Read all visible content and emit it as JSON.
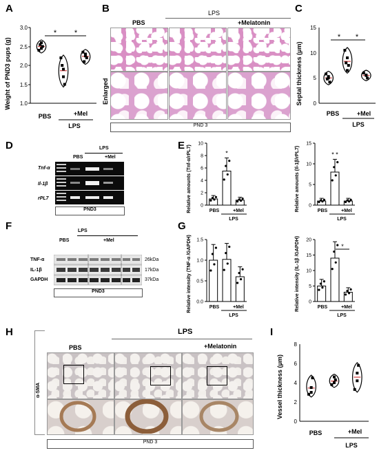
{
  "panels": {
    "A": "A",
    "B": "B",
    "C": "C",
    "D": "D",
    "E": "E",
    "F": "F",
    "G": "G",
    "H": "H",
    "I": "I"
  },
  "panel_A": {
    "ylabel": "Weight of PND3 pups (g)",
    "x_pbs": "PBS",
    "x_mel": "+Mel",
    "group": "LPS",
    "sig1": "*",
    "sig2": "*",
    "ticks": [
      "1.0",
      "1.5",
      "2.0",
      "2.5",
      "3.0"
    ]
  },
  "panel_B": {
    "pbs": "PBS",
    "lps": "LPS",
    "mel": "+Melatonin",
    "enlarged": "Enlarged",
    "footer": "PND 3"
  },
  "panel_C": {
    "ylabel": "Septal thickness (μm)",
    "x_pbs": "PBS",
    "x_mel": "+Mel",
    "group": "LPS",
    "sig1": "*",
    "sig2": "*",
    "ticks": [
      "0",
      "5",
      "10",
      "15"
    ]
  },
  "panel_D": {
    "lps": "LPS",
    "pbs": "PBS",
    "mel": "+Mel",
    "genes": [
      "Tnf-α",
      "Il-1β",
      "rPL7"
    ],
    "footer": "PND3"
  },
  "panel_E1": {
    "ylabel": "Relative amounts (Tnf-α/rPL7)",
    "ticks": [
      "0",
      "2",
      "4",
      "6",
      "8",
      "10"
    ],
    "x_pbs": "PBS",
    "x_mel": "+Mel",
    "group": "LPS",
    "sig": "*"
  },
  "panel_E2": {
    "ylabel": "Relative amounts (Il-1β/rPL7)",
    "ticks": [
      "0",
      "5",
      "10",
      "15"
    ],
    "x_pbs": "PBS",
    "x_mel": "+Mel",
    "group": "LPS",
    "sig": "* *"
  },
  "panel_F": {
    "lps": "LPS",
    "pbs": "PBS",
    "mel": "+Mel",
    "proteins": [
      "TNF-α",
      "IL-1β",
      "GAPDH"
    ],
    "sizes": [
      "26kDa",
      "17kDa",
      "37kDa"
    ],
    "footer": "PND3"
  },
  "panel_G1": {
    "ylabel": "Relative intensity (TNF-α /GAPDH)",
    "ticks": [
      "0.0",
      "0.5",
      "1.0",
      "1.5"
    ],
    "x_pbs": "PBS",
    "x_mel": "+Mel",
    "group": "LPS"
  },
  "panel_G2": {
    "ylabel": "Relative intensity (IL-1β /GAPDH)",
    "ticks": [
      "0",
      "5",
      "10",
      "15",
      "20"
    ],
    "x_pbs": "PBS",
    "x_mel": "+Mel",
    "group": "LPS",
    "sig": "*"
  },
  "panel_H": {
    "pbs": "PBS",
    "lps": "LPS",
    "mel": "+Melatonin",
    "stain": "α-SMA",
    "footer": "PND 3"
  },
  "panel_I": {
    "ylabel": "Vessel thickness (μm)",
    "ticks": [
      "0",
      "2",
      "4",
      "6",
      "8"
    ],
    "x_pbs": "PBS",
    "x_mel": "+Mel",
    "group": "LPS"
  },
  "chart_data": [
    {
      "id": "A",
      "type": "violin",
      "categories": [
        "PBS",
        "LPS",
        "+Mel"
      ],
      "ylim": [
        1.0,
        3.0
      ],
      "series": [
        {
          "values": [
            [
              2.6,
              2.5,
              2.4,
              2.45,
              2.55
            ],
            [
              1.9,
              1.5,
              2.2,
              1.7,
              2.0
            ],
            [
              2.3,
              2.2,
              2.35,
              2.25,
              2.1
            ]
          ]
        }
      ]
    },
    {
      "id": "C",
      "type": "violin",
      "categories": [
        "PBS",
        "LPS",
        "+Mel"
      ],
      "ylim": [
        0,
        15
      ],
      "series": [
        {
          "values": [
            [
              5.0,
              4.2,
              5.8,
              5.3,
              4.8
            ],
            [
              9.0,
              7.5,
              10.5,
              6.5,
              8.0
            ],
            [
              5.5,
              5.0,
              6.0,
              5.6
            ]
          ]
        }
      ]
    },
    {
      "id": "E1",
      "type": "bar",
      "categories": [
        "PBS",
        "LPS",
        "+Mel"
      ],
      "ylim": [
        0,
        10
      ],
      "values": [
        1.0,
        5.5,
        0.8
      ]
    },
    {
      "id": "E2",
      "type": "bar",
      "categories": [
        "PBS",
        "LPS",
        "+Mel"
      ],
      "ylim": [
        0,
        15
      ],
      "values": [
        1.0,
        8.0,
        1.0
      ]
    },
    {
      "id": "G1",
      "type": "bar",
      "categories": [
        "PBS",
        "LPS",
        "+Mel"
      ],
      "ylim": [
        0,
        1.5
      ],
      "values": [
        1.0,
        1.02,
        0.6
      ]
    },
    {
      "id": "G2",
      "type": "bar",
      "categories": [
        "PBS",
        "LPS",
        "+Mel"
      ],
      "ylim": [
        0,
        20
      ],
      "values": [
        5.0,
        14.0,
        3.0
      ]
    },
    {
      "id": "I",
      "type": "violin",
      "categories": [
        "PBS",
        "LPS",
        "+Mel"
      ],
      "ylim": [
        0,
        8
      ],
      "series": [
        {
          "values": [
            [
              3.0,
              4.5,
              2.8,
              3.5
            ],
            [
              4.0,
              4.3,
              3.8,
              4.6
            ],
            [
              4.2,
              5.8,
              3.3,
              5.0
            ]
          ]
        }
      ]
    }
  ]
}
